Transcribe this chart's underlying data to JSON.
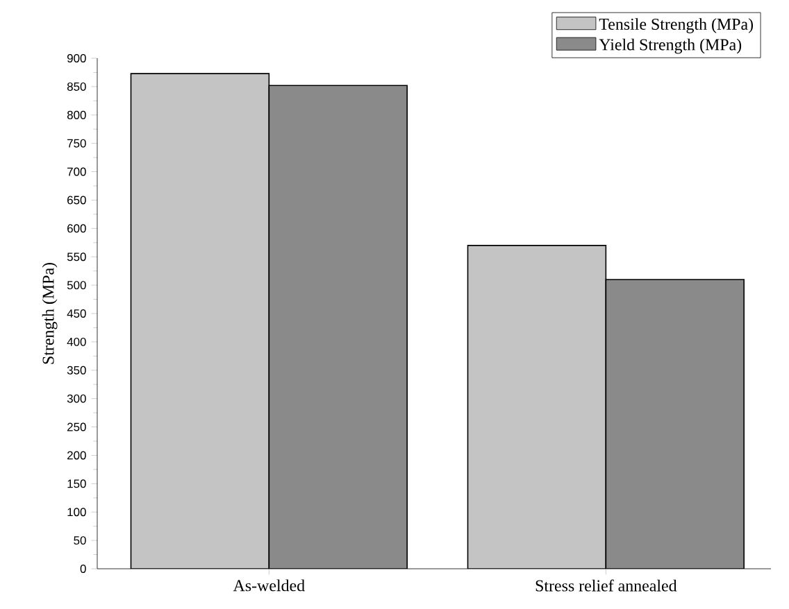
{
  "chart_data": {
    "type": "bar",
    "ylabel": "Strength (MPa)",
    "categories": [
      "As-welded",
      "Stress relief annealed"
    ],
    "series": [
      {
        "name": "Tensile Strength (MPa)",
        "color": "#c4c4c4",
        "values": [
          873,
          570
        ]
      },
      {
        "name": "Yield Strength (MPa)",
        "color": "#8a8a8a",
        "values": [
          852,
          510
        ]
      }
    ],
    "ylim": [
      0,
      900
    ],
    "yticks": [
      0,
      50,
      100,
      150,
      200,
      250,
      300,
      350,
      400,
      450,
      500,
      550,
      600,
      650,
      700,
      750,
      800,
      850,
      900
    ],
    "grid": false,
    "legend": "top right"
  }
}
